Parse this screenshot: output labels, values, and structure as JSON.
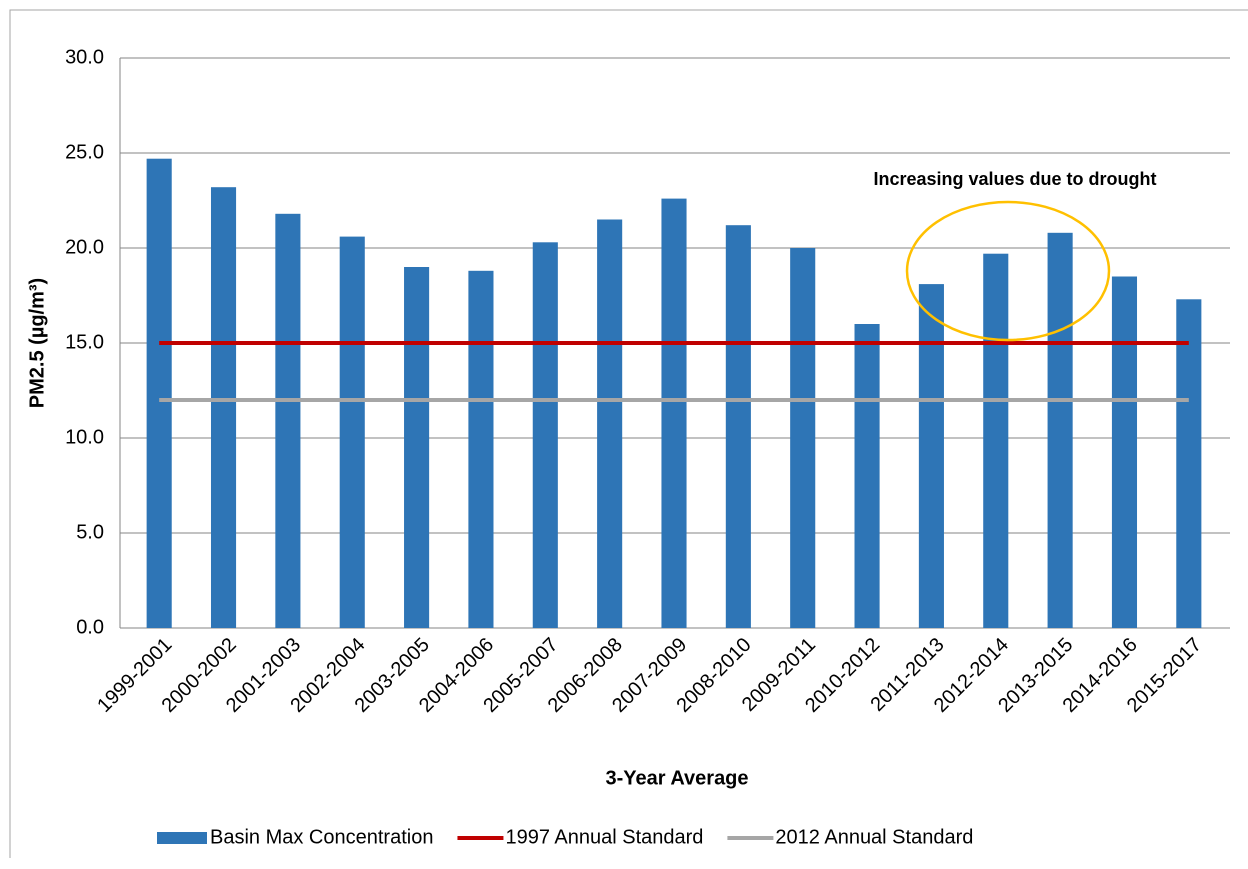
{
  "chart_data": {
    "type": "bar",
    "x_label": "3-Year Average",
    "y_label": "PM2.5 (µg/m³)",
    "annotation": "Increasing values due to drought",
    "categories": [
      "1999-2001",
      "2000-2002",
      "2001-2003",
      "2002-2004",
      "2003-2005",
      "2004-2006",
      "2005-2007",
      "2006-2008",
      "2007-2009",
      "2008-2010",
      "2009-2011",
      "2010-2012",
      "2011-2013",
      "2012-2014",
      "2013-2015",
      "2014-2016",
      "2015-2017"
    ],
    "series": [
      {
        "name": "Basin Max Concentration",
        "type": "bar",
        "color": "#2e75b6",
        "values": [
          24.7,
          23.2,
          21.8,
          20.6,
          19.0,
          18.8,
          20.3,
          21.5,
          22.6,
          21.2,
          20.0,
          16.0,
          18.1,
          19.7,
          20.8,
          18.5,
          17.3
        ]
      },
      {
        "name": "1997 Annual Standard",
        "type": "line",
        "color": "#c00000",
        "values": [
          15,
          15,
          15,
          15,
          15,
          15,
          15,
          15,
          15,
          15,
          15,
          15,
          15,
          15,
          15,
          15,
          15
        ]
      },
      {
        "name": "2012 Annual Standard",
        "type": "line",
        "color": "#a6a6a6",
        "values": [
          12,
          12,
          12,
          12,
          12,
          12,
          12,
          12,
          12,
          12,
          12,
          12,
          12,
          12,
          12,
          12,
          12
        ]
      }
    ],
    "ylim": [
      0,
      30
    ],
    "yticks": [
      {
        "value": 0,
        "label": "0.0"
      },
      {
        "value": 5,
        "label": "5.0"
      },
      {
        "value": 10,
        "label": "10.0"
      },
      {
        "value": 15,
        "label": "15.0"
      },
      {
        "value": 20,
        "label": "20.0"
      },
      {
        "value": 25,
        "label": "25.0"
      },
      {
        "value": 30,
        "label": "30.0"
      }
    ],
    "grid": true,
    "legend": "bottom"
  }
}
